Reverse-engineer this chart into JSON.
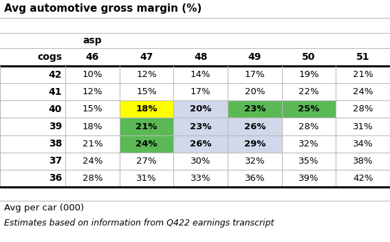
{
  "title": "Avg automotive gross margin (%)",
  "asp_label": "asp",
  "cogs_label": "cogs",
  "asp_values": [
    "46",
    "47",
    "48",
    "49",
    "50",
    "51"
  ],
  "cogs_values": [
    "42",
    "41",
    "40",
    "39",
    "38",
    "37",
    "36"
  ],
  "table_data": [
    [
      "10%",
      "12%",
      "14%",
      "17%",
      "19%",
      "21%"
    ],
    [
      "12%",
      "15%",
      "17%",
      "20%",
      "22%",
      "24%"
    ],
    [
      "15%",
      "18%",
      "20%",
      "23%",
      "25%",
      "28%"
    ],
    [
      "18%",
      "21%",
      "23%",
      "26%",
      "28%",
      "31%"
    ],
    [
      "21%",
      "24%",
      "26%",
      "29%",
      "32%",
      "34%"
    ],
    [
      "24%",
      "27%",
      "30%",
      "32%",
      "35%",
      "38%"
    ],
    [
      "28%",
      "31%",
      "33%",
      "36%",
      "39%",
      "42%"
    ]
  ],
  "cell_colors": [
    [
      "#ffffff",
      "#ffffff",
      "#ffffff",
      "#ffffff",
      "#ffffff",
      "#ffffff"
    ],
    [
      "#ffffff",
      "#ffffff",
      "#ffffff",
      "#ffffff",
      "#ffffff",
      "#ffffff"
    ],
    [
      "#ffffff",
      "#ffff00",
      "#d0d8ea",
      "#5ab955",
      "#5ab955",
      "#ffffff"
    ],
    [
      "#ffffff",
      "#5ab955",
      "#d0d8ea",
      "#d0d8ea",
      "#ffffff",
      "#ffffff"
    ],
    [
      "#ffffff",
      "#5ab955",
      "#d0d8ea",
      "#d0d8ea",
      "#ffffff",
      "#ffffff"
    ],
    [
      "#ffffff",
      "#ffffff",
      "#ffffff",
      "#ffffff",
      "#ffffff",
      "#ffffff"
    ],
    [
      "#ffffff",
      "#ffffff",
      "#ffffff",
      "#ffffff",
      "#ffffff",
      "#ffffff"
    ]
  ],
  "footer1": "Avg per car (000)",
  "footer2": "Estimates based on information from Q422 earnings transcript",
  "bg_color": "#ffffff",
  "grid_color": "#bbbbbb",
  "title_fontsize": 11,
  "cell_fontsize": 9.5,
  "header_fontsize": 10
}
